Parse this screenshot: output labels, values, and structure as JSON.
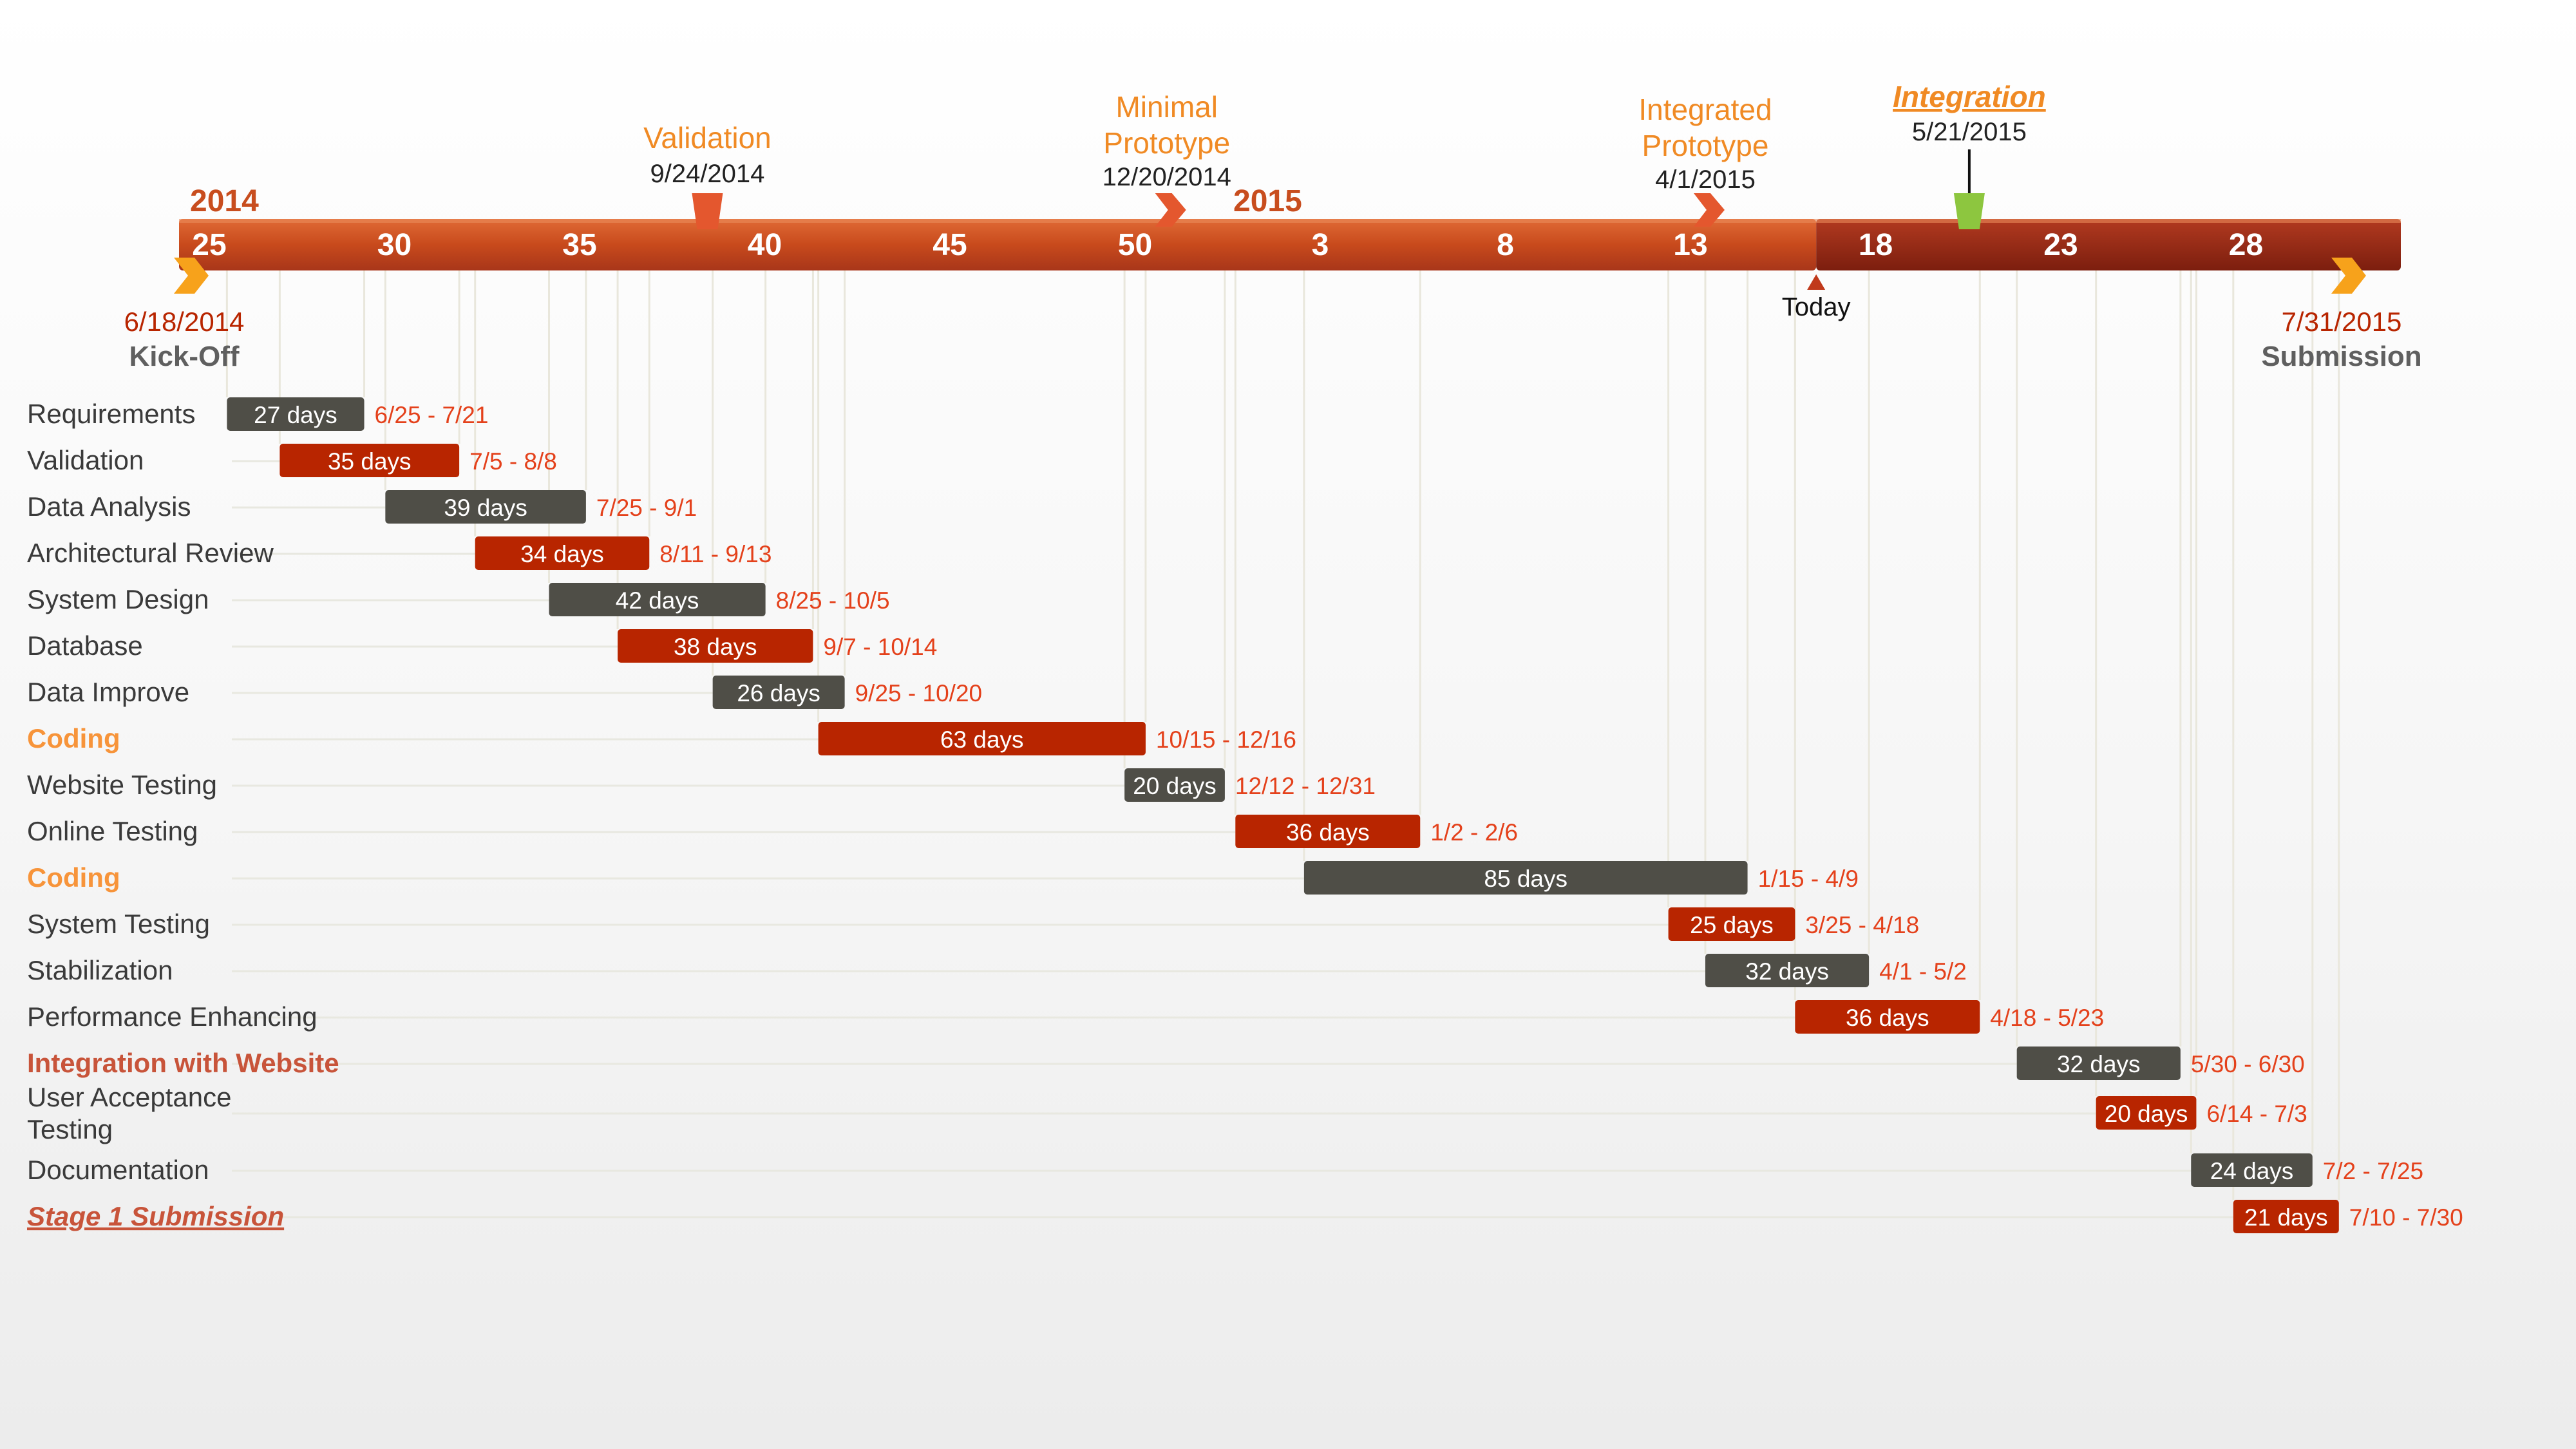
{
  "chart_data": {
    "type": "gantt",
    "timeline": {
      "start_label": "6/18/2014",
      "end_label": "7/31/2015",
      "year_labels": [
        {
          "text": "2014",
          "week": 25
        },
        {
          "text": "2015",
          "week": 53
        }
      ],
      "week_ticks": [
        {
          "label": "25",
          "week": 25
        },
        {
          "label": "30",
          "week": 30
        },
        {
          "label": "35",
          "week": 35
        },
        {
          "label": "40",
          "week": 40
        },
        {
          "label": "45",
          "week": 45
        },
        {
          "label": "50",
          "week": 50
        },
        {
          "label": "3",
          "week": 55
        },
        {
          "label": "8",
          "week": 60
        },
        {
          "label": "13",
          "week": 65
        },
        {
          "label": "18",
          "week": 70
        },
        {
          "label": "23",
          "week": 75
        },
        {
          "label": "28",
          "week": 80
        }
      ],
      "today": {
        "label": "Today",
        "date": "2015-04-22"
      }
    },
    "milestones_above": [
      {
        "name": "Validation",
        "date_label": "9/24/2014",
        "date": "2014-09-24",
        "color": "#E4572E",
        "shape": "flag-down"
      },
      {
        "name": "Minimal\nPrototype",
        "date_label": "12/20/2014",
        "date": "2014-12-20",
        "color": "#E4572E",
        "shape": "chevron"
      },
      {
        "name": "Integrated\nPrototype",
        "date_label": "4/1/2015",
        "date": "2015-04-01",
        "color": "#E4572E",
        "shape": "chevron"
      },
      {
        "name": "Integration",
        "date_label": "5/21/2015",
        "date": "2015-05-21",
        "color": "#8DC63F",
        "shape": "flag-down",
        "style": "underline-italic"
      }
    ],
    "milestones_below": [
      {
        "name": "Kick-Off",
        "date_label": "6/18/2014",
        "date": "2014-06-18",
        "color": "#F7A21B"
      },
      {
        "name": "Submission",
        "date_label": "7/31/2015",
        "date": "2015-07-31",
        "color": "#F7A21B"
      }
    ],
    "tasks": [
      {
        "name": "Requirements",
        "duration": "27 days",
        "range": "6/25 - 7/21",
        "start": "2014-06-25",
        "end": "2014-07-21",
        "color": "dark",
        "style": "normal"
      },
      {
        "name": "Validation",
        "duration": "35 days",
        "range": "7/5 - 8/8",
        "start": "2014-07-05",
        "end": "2014-08-08",
        "color": "red",
        "style": "normal"
      },
      {
        "name": "Data Analysis",
        "duration": "39 days",
        "range": "7/25 - 9/1",
        "start": "2014-07-25",
        "end": "2014-09-01",
        "color": "dark",
        "style": "normal"
      },
      {
        "name": "Architectural Review",
        "duration": "34 days",
        "range": "8/11 - 9/13",
        "start": "2014-08-11",
        "end": "2014-09-13",
        "color": "red",
        "style": "normal"
      },
      {
        "name": "System Design",
        "duration": "42 days",
        "range": "8/25 - 10/5",
        "start": "2014-08-25",
        "end": "2014-10-05",
        "color": "dark",
        "style": "normal"
      },
      {
        "name": "Database",
        "duration": "38 days",
        "range": "9/7 - 10/14",
        "start": "2014-09-07",
        "end": "2014-10-14",
        "color": "red",
        "style": "normal"
      },
      {
        "name": "Data Improve",
        "duration": "26 days",
        "range": "9/25 - 10/20",
        "start": "2014-09-25",
        "end": "2014-10-20",
        "color": "dark",
        "style": "normal"
      },
      {
        "name": "Coding",
        "duration": "63 days",
        "range": "10/15 - 12/16",
        "start": "2014-10-15",
        "end": "2014-12-16",
        "color": "red",
        "style": "orange"
      },
      {
        "name": "Website Testing",
        "duration": "20 days",
        "range": "12/12 - 12/31",
        "start": "2014-12-12",
        "end": "2014-12-31",
        "color": "dark",
        "style": "normal"
      },
      {
        "name": "Online Testing",
        "duration": "36 days",
        "range": "1/2 - 2/6",
        "start": "2015-01-02",
        "end": "2015-02-06",
        "color": "red",
        "style": "normal"
      },
      {
        "name": "Coding",
        "duration": "85 days",
        "range": "1/15 - 4/9",
        "start": "2015-01-15",
        "end": "2015-04-09",
        "color": "dark",
        "style": "orange"
      },
      {
        "name": "System Testing",
        "duration": "25 days",
        "range": "3/25 - 4/18",
        "start": "2015-03-25",
        "end": "2015-04-18",
        "color": "red",
        "style": "normal"
      },
      {
        "name": "Stabilization",
        "duration": "32 days",
        "range": "4/1 - 5/2",
        "start": "2015-04-01",
        "end": "2015-05-02",
        "color": "dark",
        "style": "normal"
      },
      {
        "name": "Performance Enhancing",
        "duration": "36 days",
        "range": "4/18 - 5/23",
        "start": "2015-04-18",
        "end": "2015-05-23",
        "color": "red",
        "style": "normal"
      },
      {
        "name": "Integration  with Website",
        "duration": "32 days",
        "range": "5/30 - 6/30",
        "start": "2015-05-30",
        "end": "2015-06-30",
        "color": "dark",
        "style": "redbold"
      },
      {
        "name": "User Acceptance\nTesting",
        "duration": "20 days",
        "range": "6/14 - 7/3",
        "start": "2015-06-14",
        "end": "2015-07-03",
        "color": "red",
        "style": "normal"
      },
      {
        "name": "Documentation",
        "duration": "24 days",
        "range": "7/2 - 7/25",
        "start": "2015-07-02",
        "end": "2015-07-25",
        "color": "dark",
        "style": "normal"
      },
      {
        "name": "Stage  1 Submission",
        "duration": "21 days",
        "range": "7/10 - 7/30",
        "start": "2015-07-10",
        "end": "2015-07-30",
        "color": "red",
        "style": "underline"
      }
    ],
    "colors": {
      "bar_dark": "#4F4E47",
      "bar_red": "#B82500",
      "timeline_start": "#C84D1E",
      "timeline_end": "#A8361A",
      "timeline_future": "#8E2312",
      "milestone_orange": "#F08A24",
      "range_text": "#E4411B",
      "task_text": "#3a3a3a",
      "highlight_orange": "#F7943A",
      "highlight_red": "#C8543A"
    }
  }
}
